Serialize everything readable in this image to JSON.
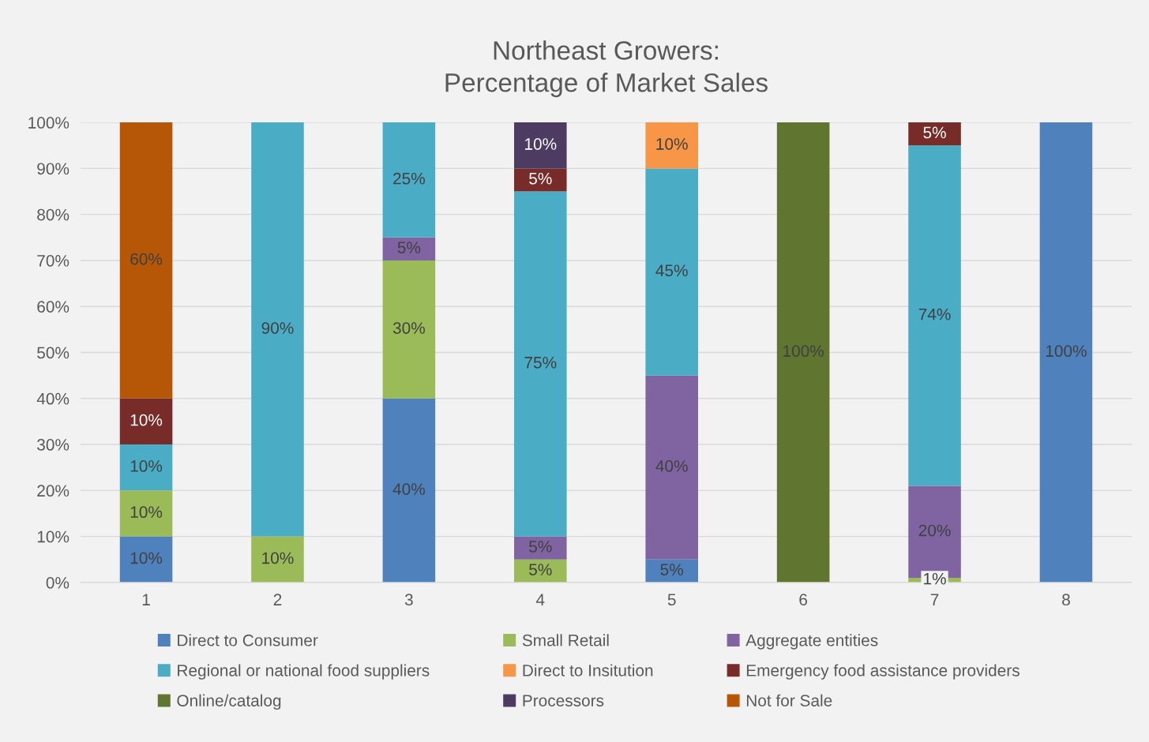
{
  "chart_data": {
    "type": "bar",
    "stacked": true,
    "title": "Northeast Growers:\nPercentage of Market Sales",
    "categories": [
      "1",
      "2",
      "3",
      "4",
      "5",
      "6",
      "7",
      "8"
    ],
    "ylim": [
      0,
      100
    ],
    "yticks": [
      {
        "value": 0,
        "label": "0%"
      },
      {
        "value": 10,
        "label": "10%"
      },
      {
        "value": 20,
        "label": "20%"
      },
      {
        "value": 30,
        "label": "30%"
      },
      {
        "value": 40,
        "label": "40%"
      },
      {
        "value": 50,
        "label": "50%"
      },
      {
        "value": 60,
        "label": "60%"
      },
      {
        "value": 70,
        "label": "70%"
      },
      {
        "value": 80,
        "label": "80%"
      },
      {
        "value": 90,
        "label": "90%"
      },
      {
        "value": 100,
        "label": "100%"
      }
    ],
    "grid": "y",
    "legend": "bottom",
    "series": [
      {
        "name": "Direct to Consumer",
        "color": "#4f81bd",
        "values": [
          10,
          null,
          40,
          null,
          5,
          null,
          null,
          100
        ],
        "value_labels": [
          "10%",
          null,
          "40%",
          null,
          "5%",
          null,
          null,
          "100%"
        ]
      },
      {
        "name": "Small Retail",
        "color": "#9bbb59",
        "values": [
          10,
          10,
          30,
          5,
          null,
          null,
          1,
          null
        ],
        "value_labels": [
          "10%",
          "10%",
          "30%",
          "5%",
          null,
          null,
          "1%",
          null
        ]
      },
      {
        "name": "Aggregate entities",
        "color": "#8064a2",
        "values": [
          null,
          null,
          5,
          5,
          40,
          null,
          20,
          null
        ],
        "value_labels": [
          null,
          null,
          "5%",
          "5%",
          "40%",
          null,
          "20%",
          null
        ]
      },
      {
        "name": "Regional or national food suppliers",
        "color": "#4bacc6",
        "values": [
          10,
          90,
          25,
          75,
          45,
          null,
          74,
          null
        ],
        "value_labels": [
          "10%",
          "90%",
          "25%",
          "75%",
          "45%",
          null,
          "74%",
          null
        ]
      },
      {
        "name": "Direct to Insitution",
        "color": "#f79646",
        "values": [
          null,
          null,
          null,
          null,
          10,
          null,
          null,
          null
        ],
        "value_labels": [
          null,
          null,
          null,
          null,
          "10%",
          null,
          null,
          null
        ]
      },
      {
        "name": "Emergency food assistance providers",
        "color": "#772c2a",
        "values": [
          10,
          null,
          null,
          5,
          null,
          null,
          5,
          null
        ],
        "value_labels": [
          "10%",
          null,
          null,
          "5%",
          null,
          null,
          "5%",
          null
        ]
      },
      {
        "name": "Online/catalog",
        "color": "#5f7530",
        "values": [
          null,
          null,
          null,
          null,
          null,
          100,
          null,
          null
        ],
        "value_labels": [
          null,
          null,
          null,
          null,
          null,
          "100%",
          null,
          null
        ]
      },
      {
        "name": "Processors",
        "color": "#4d3b62",
        "values": [
          null,
          null,
          null,
          10,
          null,
          null,
          null,
          null
        ],
        "value_labels": [
          null,
          null,
          null,
          "10%",
          null,
          null,
          null,
          null
        ]
      },
      {
        "name": "Not for Sale",
        "color": "#b65708",
        "values": [
          60,
          null,
          null,
          null,
          null,
          null,
          null,
          null
        ],
        "value_labels": [
          "60%",
          null,
          null,
          null,
          null,
          null,
          null,
          null
        ]
      }
    ]
  }
}
